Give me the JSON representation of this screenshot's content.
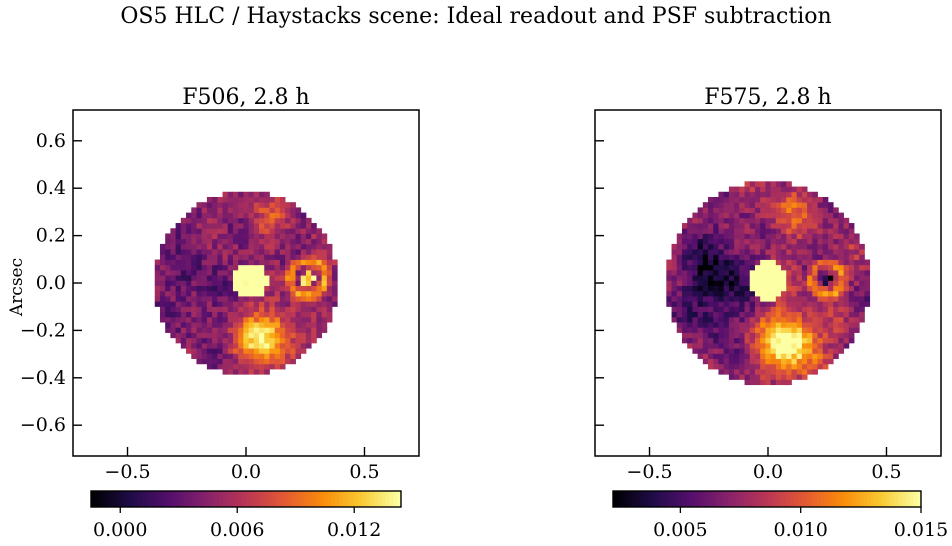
{
  "figure": {
    "suptitle": "OS5 HLC / Haystacks scene: Ideal readout and PSF subtraction"
  },
  "chart_data": [
    {
      "type": "heatmap",
      "title": "F506, 2.8 h",
      "xlabel": "",
      "ylabel": "Arcsec",
      "xlim": [
        -0.73,
        0.73
      ],
      "ylim": [
        -0.73,
        0.73
      ],
      "xticks": [
        "−0.5",
        "0.0",
        "0.5"
      ],
      "yticks": [
        "0.6",
        "0.4",
        "0.2",
        "0.0",
        "−0.2",
        "−0.4",
        "−0.6"
      ],
      "show_y_ticklabels": true,
      "colormap": "inferno",
      "colorbar": {
        "range": [
          -0.0015,
          0.0144
        ],
        "ticks": [
          "0.000",
          "0.006",
          "0.012"
        ],
        "tick_values": [
          0.0,
          0.006,
          0.012
        ]
      },
      "field": {
        "disk_radius": 0.385,
        "pixel_size": 0.022,
        "background": 0.0045,
        "left_dark_patch": {
          "center": [
            -0.22,
            0.0
          ],
          "depth": 0.0018
        },
        "features": [
          {
            "label": "central bright source",
            "center": [
              0.02,
              0.01
            ],
            "radius": 0.075,
            "value": 0.016
          },
          {
            "label": "lower bright blob",
            "center": [
              0.08,
              -0.23
            ],
            "sigma": 0.08,
            "peak": 0.0095
          },
          {
            "label": "upper blob",
            "center": [
              0.08,
              0.27
            ],
            "sigma": 0.06,
            "peak": 0.003
          },
          {
            "label": "ring",
            "center": [
              0.26,
              0.02
            ],
            "radius": 0.075,
            "width": 0.016,
            "peak": 0.0065
          },
          {
            "label": "ring core",
            "center": [
              0.26,
              0.02
            ],
            "radius": 0.03,
            "value": 0.013
          }
        ]
      }
    },
    {
      "type": "heatmap",
      "title": "F575, 2.8 h",
      "xlabel": "",
      "ylabel": "",
      "xlim": [
        -0.73,
        0.73
      ],
      "ylim": [
        -0.73,
        0.73
      ],
      "xticks": [
        "−0.5",
        "0.0",
        "0.5"
      ],
      "yticks": [],
      "show_y_ticklabels": false,
      "colormap": "inferno",
      "colorbar": {
        "range": [
          0.0022,
          0.015
        ],
        "ticks": [
          "0.005",
          "0.010",
          "0.015"
        ],
        "tick_values": [
          0.005,
          0.01,
          0.015
        ]
      },
      "field": {
        "disk_radius": 0.43,
        "pixel_size": 0.022,
        "background": 0.0072,
        "left_dark_patch": {
          "center": [
            -0.22,
            0.0
          ],
          "depth": 0.0045
        },
        "features": [
          {
            "label": "central bright source",
            "center": [
              0.0,
              0.01
            ],
            "radius": 0.085,
            "value": 0.02
          },
          {
            "label": "lower bright blob",
            "center": [
              0.09,
              -0.25
            ],
            "sigma": 0.09,
            "peak": 0.0085
          },
          {
            "label": "upper blob",
            "center": [
              0.08,
              0.29
            ],
            "sigma": 0.07,
            "peak": 0.003
          },
          {
            "label": "ring",
            "center": [
              0.25,
              0.02
            ],
            "radius": 0.065,
            "width": 0.016,
            "peak": 0.0045
          },
          {
            "label": "ring core",
            "center": [
              0.25,
              0.02
            ],
            "radius": 0.022,
            "value": 0.003
          }
        ]
      }
    }
  ]
}
